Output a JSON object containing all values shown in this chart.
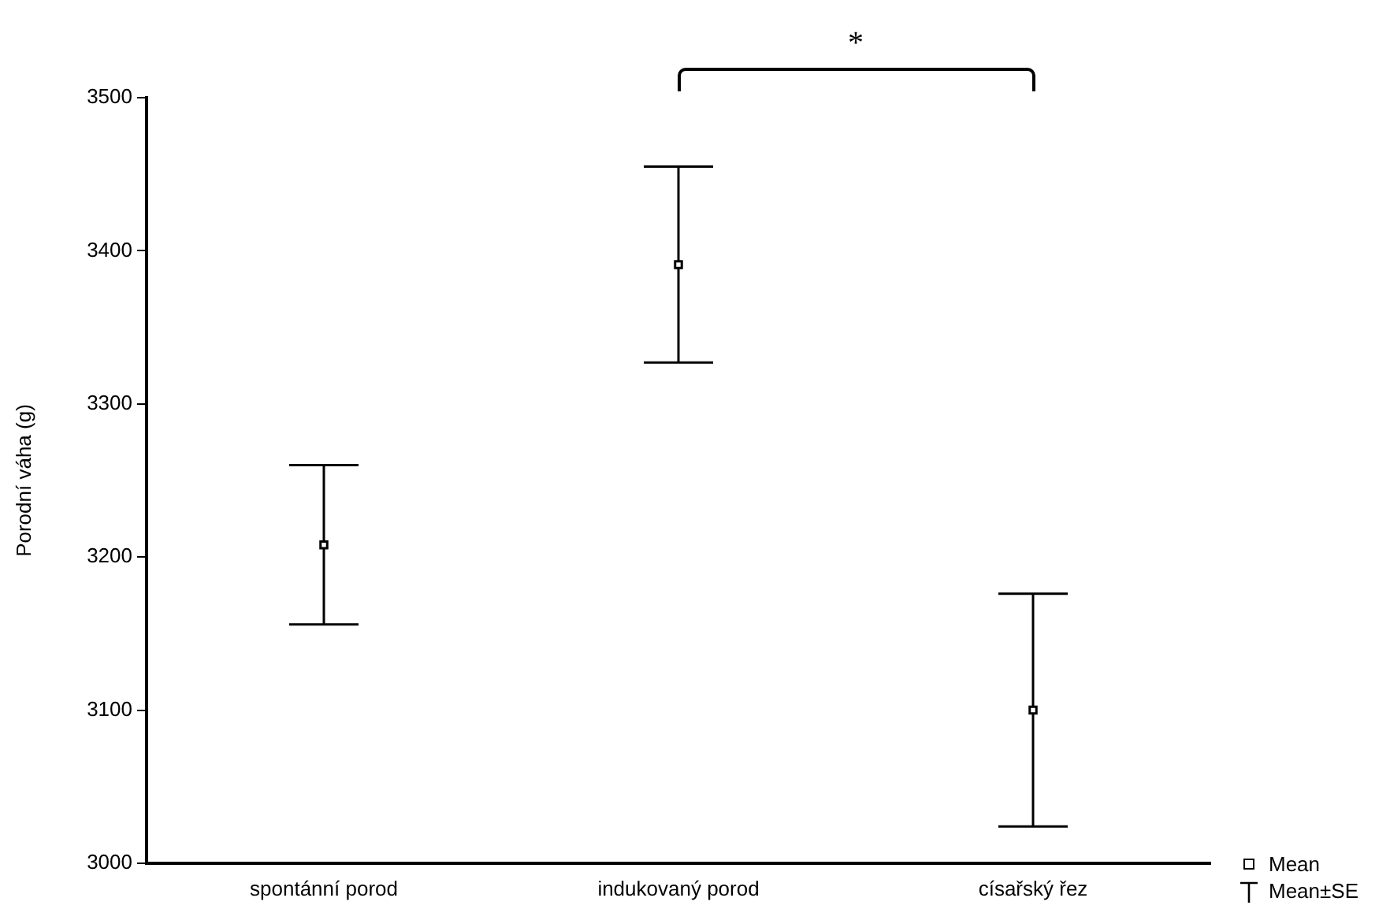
{
  "chart_data": {
    "type": "scatter",
    "ylabel": "Porodní váha (g)",
    "categories": [
      "spontánní porod",
      "indukovaný porod",
      "císařský řez"
    ],
    "series": [
      {
        "name": "Mean",
        "color": "#000000",
        "values": [
          3208,
          3391,
          3100
        ],
        "errors": [
          52,
          64,
          76
        ]
      }
    ],
    "ylim": [
      3000,
      3500
    ],
    "yticks": [
      3000,
      3100,
      3200,
      3300,
      3400,
      3500
    ],
    "marker": "square",
    "grid": false,
    "legend": "bottom right",
    "annotations": [
      "*",
      "Mean±SE"
    ]
  }
}
